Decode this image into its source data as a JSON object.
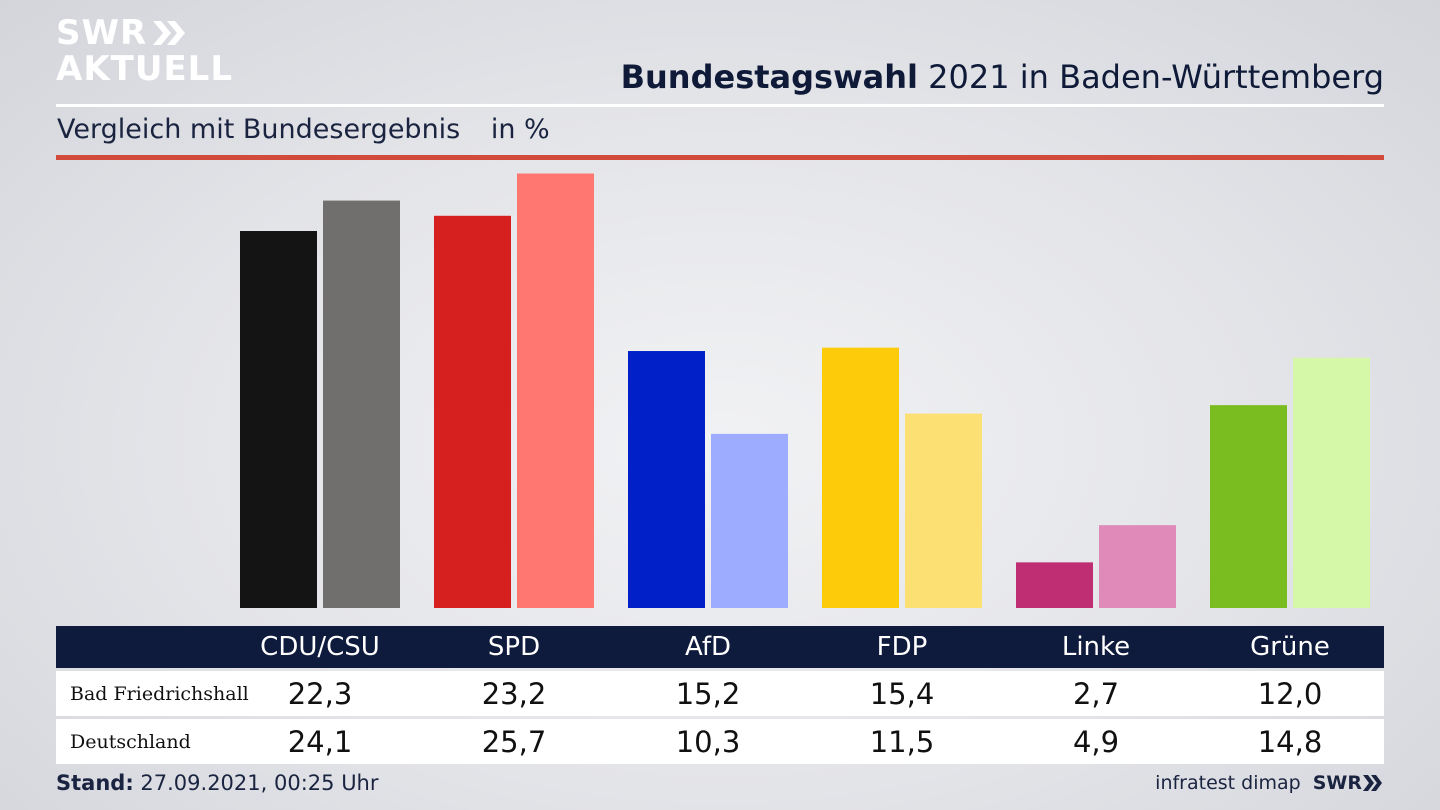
{
  "brand": {
    "line1": "SWR",
    "line2": "AKTUELL"
  },
  "header": {
    "title_bold": "Bundestagswahl",
    "title_rest": "2021 in Baden-Württemberg",
    "subtitle": "Vergleich mit Bundesergebnis",
    "unit": "in %"
  },
  "chart_data": {
    "type": "bar",
    "categories": [
      "CDU/CSU",
      "SPD",
      "AfD",
      "FDP",
      "Linke",
      "Grüne"
    ],
    "series": [
      {
        "name": "Bad Friedrichshall",
        "values": [
          22.3,
          23.2,
          15.2,
          15.4,
          2.7,
          12.0
        ],
        "labels": [
          "22,3",
          "23,2",
          "15,2",
          "15,4",
          "2,7",
          "12,0"
        ]
      },
      {
        "name": "Deutschland",
        "values": [
          24.1,
          25.7,
          10.3,
          11.5,
          4.9,
          14.8
        ],
        "labels": [
          "24,1",
          "25,7",
          "10,3",
          "11,5",
          "4,9",
          "14,8"
        ]
      }
    ],
    "colors": {
      "Bad Friedrichshall": [
        "#141414",
        "#d61f1f",
        "#0220c8",
        "#fecb0a",
        "#bf2e72",
        "#79bd20"
      ],
      "Deutschland": [
        "#706f6d",
        "#ff7770",
        "#9eacff",
        "#fde074",
        "#df8ab8",
        "#d4f7a8"
      ]
    },
    "ylim": [
      0,
      26.5
    ],
    "grid": false,
    "legend": "table-below"
  },
  "footer": {
    "stand_label": "Stand:",
    "stand_value": "27.09.2021, 00:25 Uhr",
    "source": "infratest dimap",
    "brand": "SWR"
  }
}
